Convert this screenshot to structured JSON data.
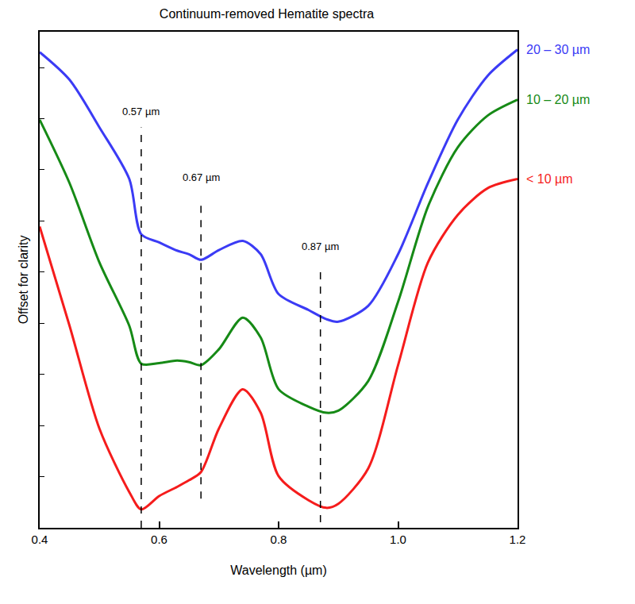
{
  "chart_data": {
    "type": "line",
    "title": "Continuum-removed Hematite spectra",
    "x_label": "Wavelength (µm)",
    "y_label": "Offset for clarity",
    "x": [
      0.4,
      0.45,
      0.5,
      0.55,
      0.57,
      0.6,
      0.63,
      0.65,
      0.67,
      0.7,
      0.74,
      0.77,
      0.8,
      0.85,
      0.88,
      0.9,
      0.95,
      1.0,
      1.05,
      1.1,
      1.15,
      1.2
    ],
    "series": [
      {
        "name": "20 – 30 µm",
        "color": "#3b3bf5",
        "values": [
          9.3,
          8.76,
          7.83,
          6.82,
          5.74,
          5.58,
          5.42,
          5.35,
          5.24,
          5.43,
          5.61,
          5.35,
          4.57,
          4.26,
          4.08,
          4.03,
          4.34,
          5.35,
          6.74,
          7.98,
          8.84,
          9.35
        ]
      },
      {
        "name": "10 – 20 µm",
        "color": "#168a16",
        "values": [
          7.98,
          6.74,
          5.19,
          3.95,
          3.21,
          3.22,
          3.27,
          3.24,
          3.18,
          3.49,
          4.11,
          3.72,
          2.71,
          2.37,
          2.25,
          2.29,
          2.87,
          4.42,
          6.28,
          7.44,
          8.06,
          8.37
        ]
      },
      {
        "name": "< 10 µm",
        "color": "#f51c1c",
        "values": [
          5.89,
          3.95,
          1.94,
          0.7,
          0.36,
          0.62,
          0.8,
          0.93,
          1.09,
          1.94,
          2.71,
          2.25,
          1.01,
          0.54,
          0.39,
          0.47,
          1.16,
          3.18,
          5.19,
          6.12,
          6.64,
          6.82
        ]
      }
    ],
    "xlim": [
      0.4,
      1.2
    ],
    "xticks": [
      0.4,
      0.6,
      0.8,
      {
        "value": 1,
        "label": "1.0"
      },
      1.2
    ],
    "ylim": [
      0,
      9.7
    ],
    "yticks": [
      0,
      1,
      2,
      3,
      4,
      5,
      6,
      7,
      8,
      9
    ],
    "tick_labels": "x",
    "grid": false,
    "annotations": [
      {
        "text": "0.57 µm",
        "x": 0.57,
        "y": 8.0,
        "line_from": 0,
        "line_to": 7.83
      },
      {
        "text": "0.67 µm",
        "x": 0.67,
        "y": 6.71,
        "line_from": 0.57,
        "line_to": 6.4
      },
      {
        "text": "0.87 µm",
        "x": 0.87,
        "y": 5.35,
        "line_from": 0.11,
        "line_to": 5.07
      }
    ]
  }
}
